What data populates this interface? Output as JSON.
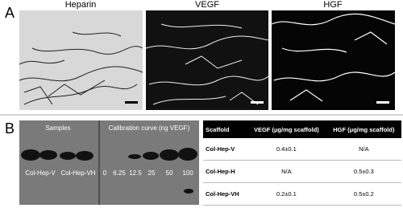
{
  "panel_a": {
    "label": "A",
    "images": [
      {
        "title": "Heparin"
      },
      {
        "title": "VEGF"
      },
      {
        "title": "HGF"
      }
    ]
  },
  "panel_b": {
    "label": "B",
    "blot": {
      "samples_label": "Samples",
      "calibration_label": "Calibration curve (ng VEGF)",
      "sample_lanes": [
        "Col-Hep-V",
        "Col-Hep-VH"
      ],
      "calibration_lanes": [
        "0",
        "6.25",
        "12.5",
        "25",
        "50",
        "100"
      ]
    },
    "table": {
      "header": [
        "Scaffold",
        "VEGF (μg/mg scaffold)",
        "HGF (μg/mg scaffold)"
      ],
      "rows": [
        [
          "Col-Hep-V",
          "0.4±0.1",
          "N/A"
        ],
        [
          "Col-Hep-H",
          "N/A",
          "0.5±0.3"
        ],
        [
          "Col-Hep-VH",
          "0.2±0.1",
          "0.5±0.2"
        ]
      ]
    }
  }
}
